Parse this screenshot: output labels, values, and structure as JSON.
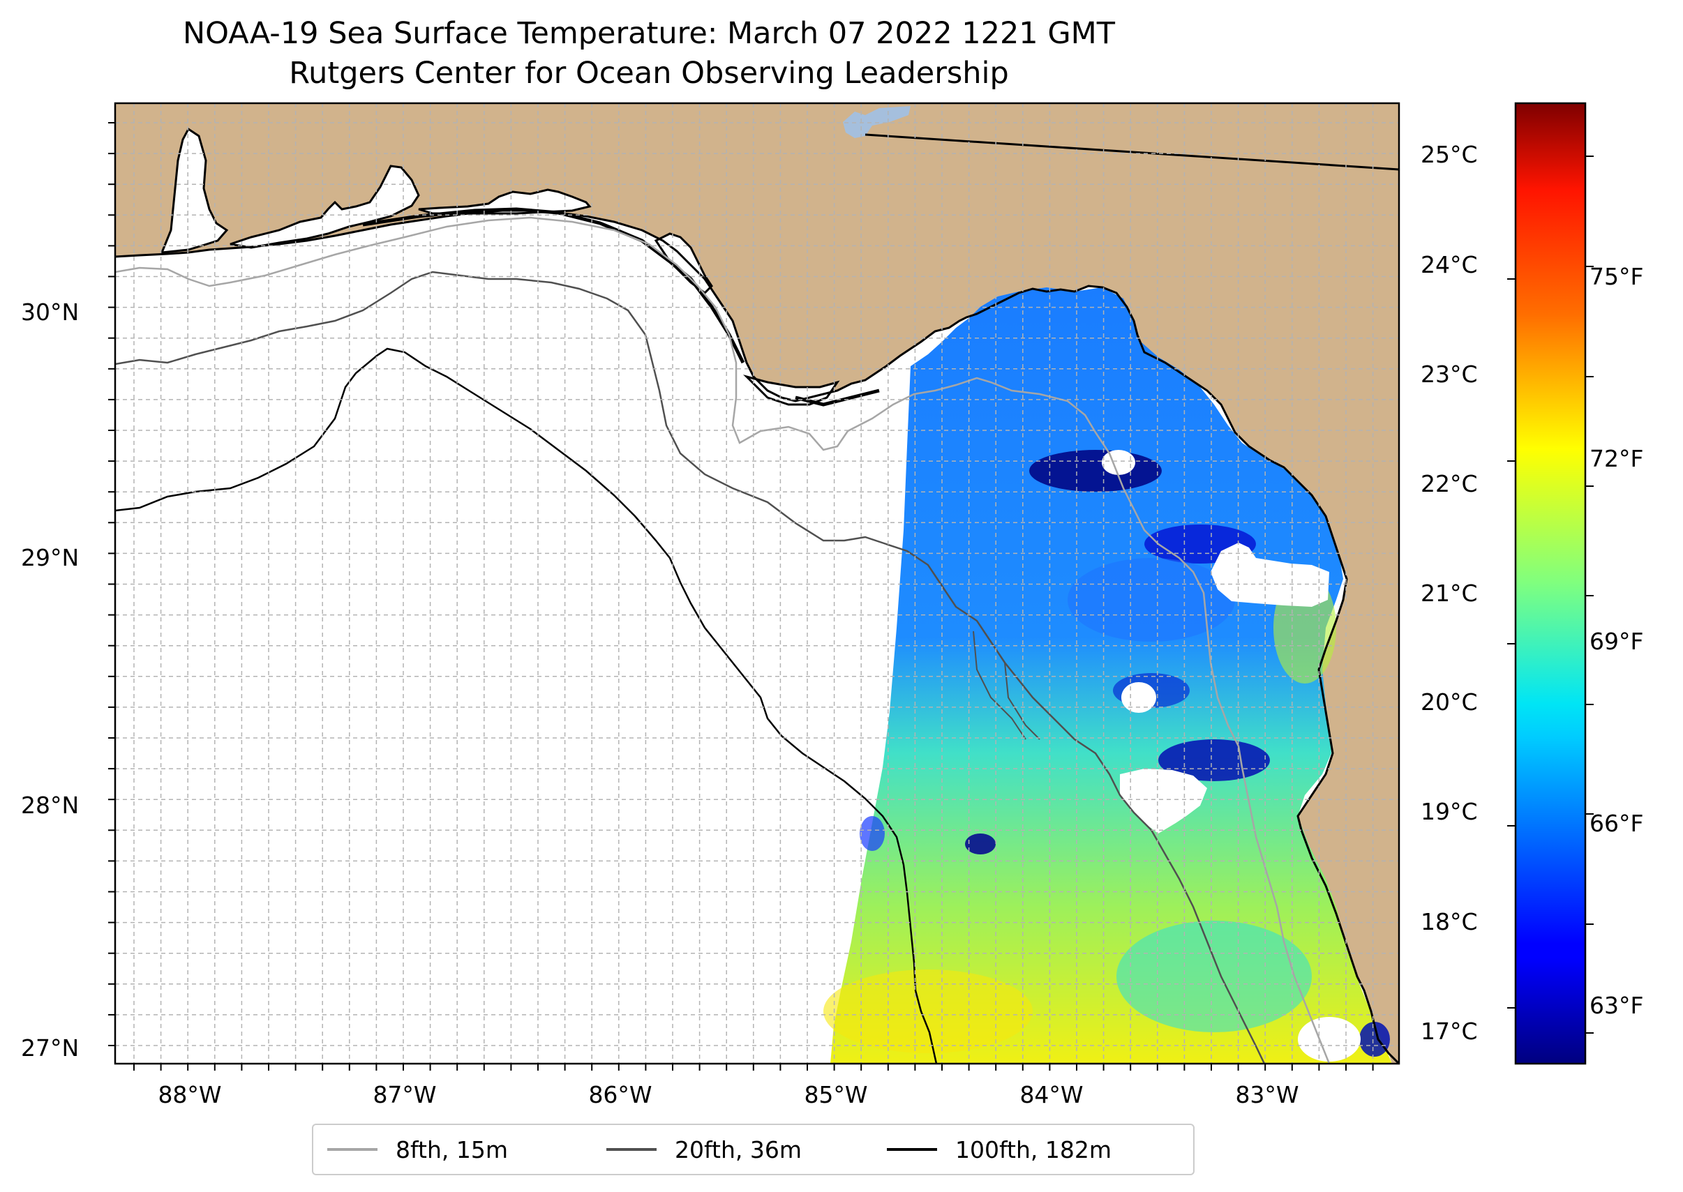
{
  "title": {
    "line1": "NOAA-19 Sea Surface Temperature: March 07 2022 1221 GMT",
    "line2": "Rutgers Center for Ocean Observing Leadership"
  },
  "map": {
    "latitude_labels": [
      "30°N",
      "29°N",
      "28°N",
      "27°N"
    ],
    "longitude_labels": [
      "88°W",
      "87°W",
      "86°W",
      "85°W",
      "84°W",
      "83°W"
    ],
    "lon_range": [
      -88.33,
      -82.37
    ],
    "lat_range": [
      26.94,
      30.85
    ]
  },
  "colorbar": {
    "celsius_labels": [
      "25°C",
      "24°C",
      "23°C",
      "22°C",
      "21°C",
      "20°C",
      "19°C",
      "18°C",
      "17°C"
    ],
    "fahrenheit_labels": [
      "75°F",
      "72°F",
      "69°F",
      "66°F",
      "63°F"
    ],
    "range_celsius": [
      16.7,
      25.5
    ],
    "colormap": "jet"
  },
  "legend": {
    "items": [
      {
        "label": "8fth, 15m",
        "color": "#a6a6a6"
      },
      {
        "label": "20fth, 36m",
        "color": "#505050"
      },
      {
        "label": "100fth, 182m",
        "color": "#000000"
      }
    ]
  },
  "colors": {
    "land": "#d1b38c",
    "lake": "#a5bfdd",
    "no_data": "#ffffff",
    "grid": "#b3b3b3"
  }
}
